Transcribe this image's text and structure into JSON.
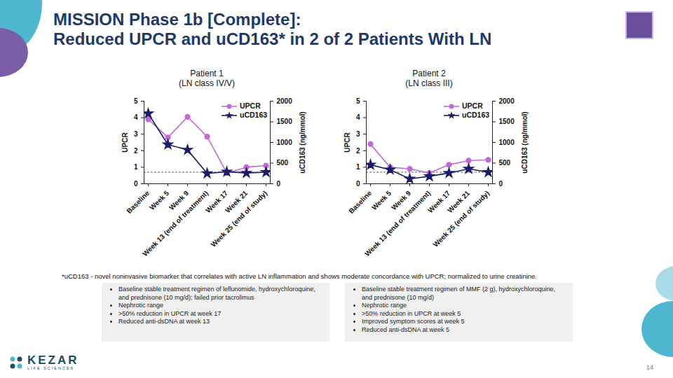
{
  "title": [
    "MISSION Phase 1b [Complete]:",
    "Reduced UPCR and uCD163* in 2 of 2 Patients With LN"
  ],
  "chart_data": [
    {
      "type": "line",
      "title": "Patient 1",
      "subtitle": "(LN class IV/V)",
      "categories": [
        "Baseline",
        "Week 5",
        "Week 9",
        "Week 13 (end of treatment)",
        "Week 17",
        "Week 21",
        "Week 25 (end of study)"
      ],
      "series": [
        {
          "name": "UPCR",
          "color": "#bf6ad8",
          "marker": "circle",
          "values": [
            3.9,
            2.8,
            4.05,
            2.85,
            0.65,
            1.0,
            1.1
          ]
        },
        {
          "name": "uCD163",
          "color": "#1c1c6b",
          "marker": "star",
          "axis": "y2",
          "values": [
            1700,
            950,
            820,
            250,
            290,
            260,
            280
          ]
        }
      ],
      "ylabel": "UPCR",
      "y2label": "uCD163 (ng/mmol)",
      "ylim": [
        0,
        5
      ],
      "yticks": [
        0,
        1,
        2,
        3,
        4,
        5
      ],
      "y2lim": [
        0,
        2000
      ],
      "y2ticks": [
        0,
        500,
        1000,
        1500,
        2000
      ],
      "reference_line": {
        "value": 0.7,
        "line_style": "dashed"
      },
      "legend": "top-right"
    },
    {
      "type": "line",
      "title": "Patient 2",
      "subtitle": "(LN class III)",
      "categories": [
        "Baseline",
        "Week 5",
        "Week 9",
        "Week 13 (end of treatment)",
        "Week 17",
        "Week 21",
        "Week 25 (end of study)"
      ],
      "series": [
        {
          "name": "UPCR",
          "color": "#bf6ad8",
          "marker": "circle",
          "values": [
            2.4,
            1.0,
            0.9,
            0.65,
            1.15,
            1.4,
            1.45
          ]
        },
        {
          "name": "uCD163",
          "color": "#1c1c6b",
          "marker": "star",
          "axis": "y2",
          "values": [
            460,
            340,
            120,
            180,
            260,
            360,
            280
          ]
        }
      ],
      "ylabel": "UPCR",
      "y2label": "uCD163 (ng/mmol)",
      "ylim": [
        0,
        5
      ],
      "yticks": [
        0,
        1,
        2,
        3,
        4,
        5
      ],
      "y2lim": [
        0,
        2000
      ],
      "y2ticks": [
        0,
        500,
        1000,
        1500,
        2000
      ],
      "reference_line": {
        "value": 0.7,
        "line_style": "dashed"
      },
      "legend": "top-right"
    }
  ],
  "footnote": "*uCD163 - novel noninvasive biomarker that correlates with active LN inflammation and shows moderate concordance with UPCR; normalized to urine creatinine.",
  "notes": [
    [
      "Baseline stable treatment regimen of leflunomide, hydroxychloroquine, and prednisone (10 mg/d); failed prior tacrolimus",
      "Nephrotic range",
      ">50% reduction in UPCR at week 17",
      "Reduced anti-dsDNA at week 13"
    ],
    [
      "Baseline stable treatment regimen of MMF (2 g), hydroxychloroquine, and prednisone (10 mg/d)",
      "Nephrotic range",
      ">50% reduction in UPCR at week 5",
      "Improved symptom scores at week 5",
      "Reduced anti-dsDNA at week 5"
    ]
  ],
  "logo": {
    "name": "KEZAR",
    "tagline": "LIFE SCIENCES"
  },
  "page_number": 14
}
